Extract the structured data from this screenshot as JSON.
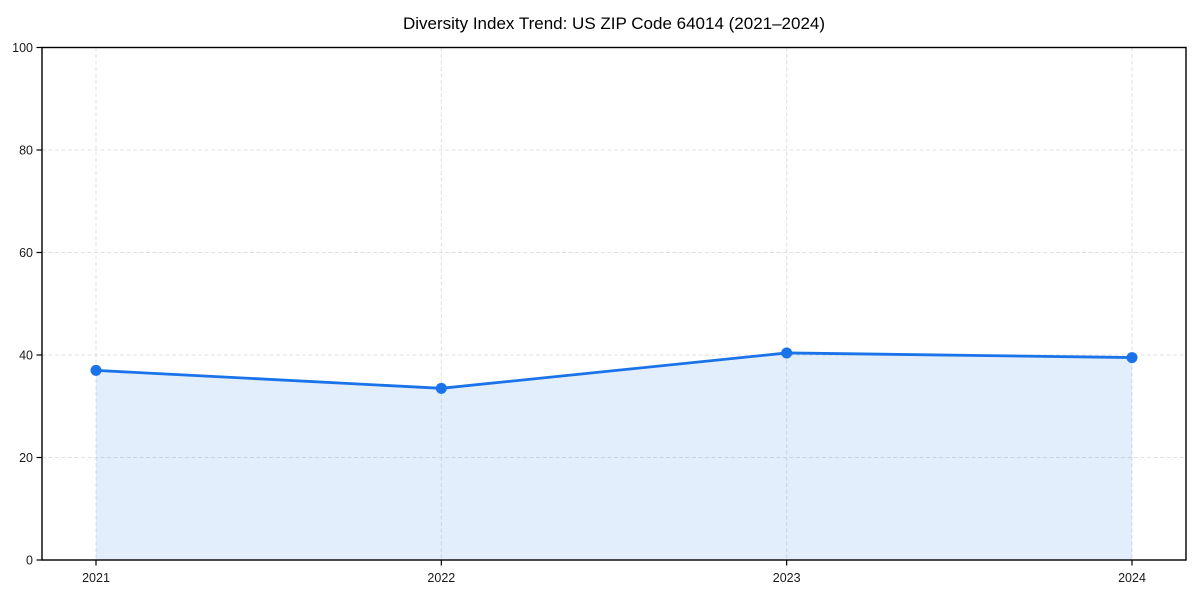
{
  "page": {
    "background": "#ffffff"
  },
  "chart_data": {
    "type": "area",
    "title": "Diversity Index Trend: US ZIP Code 64014 (2021–2024)",
    "categories": [
      "2021",
      "2022",
      "2023",
      "2024"
    ],
    "series": [
      {
        "name": "Diversity Index",
        "values": [
          37.0,
          33.5,
          40.4,
          39.5
        ]
      }
    ],
    "xlabel": "",
    "ylabel": "",
    "ylim": [
      0,
      100
    ],
    "yticks": [
      0,
      20,
      40,
      60,
      80,
      100
    ],
    "grid": "dashed-both-axes",
    "legend_position": "none",
    "colors": {
      "line": "#1a73e8",
      "marker": "#1a73e8",
      "fill": "rgba(26,115,232,0.12)",
      "grid": "#e0e0e0",
      "spine": "#000000",
      "tick_text": "#1a1a1a",
      "title_text": "#000000"
    }
  }
}
